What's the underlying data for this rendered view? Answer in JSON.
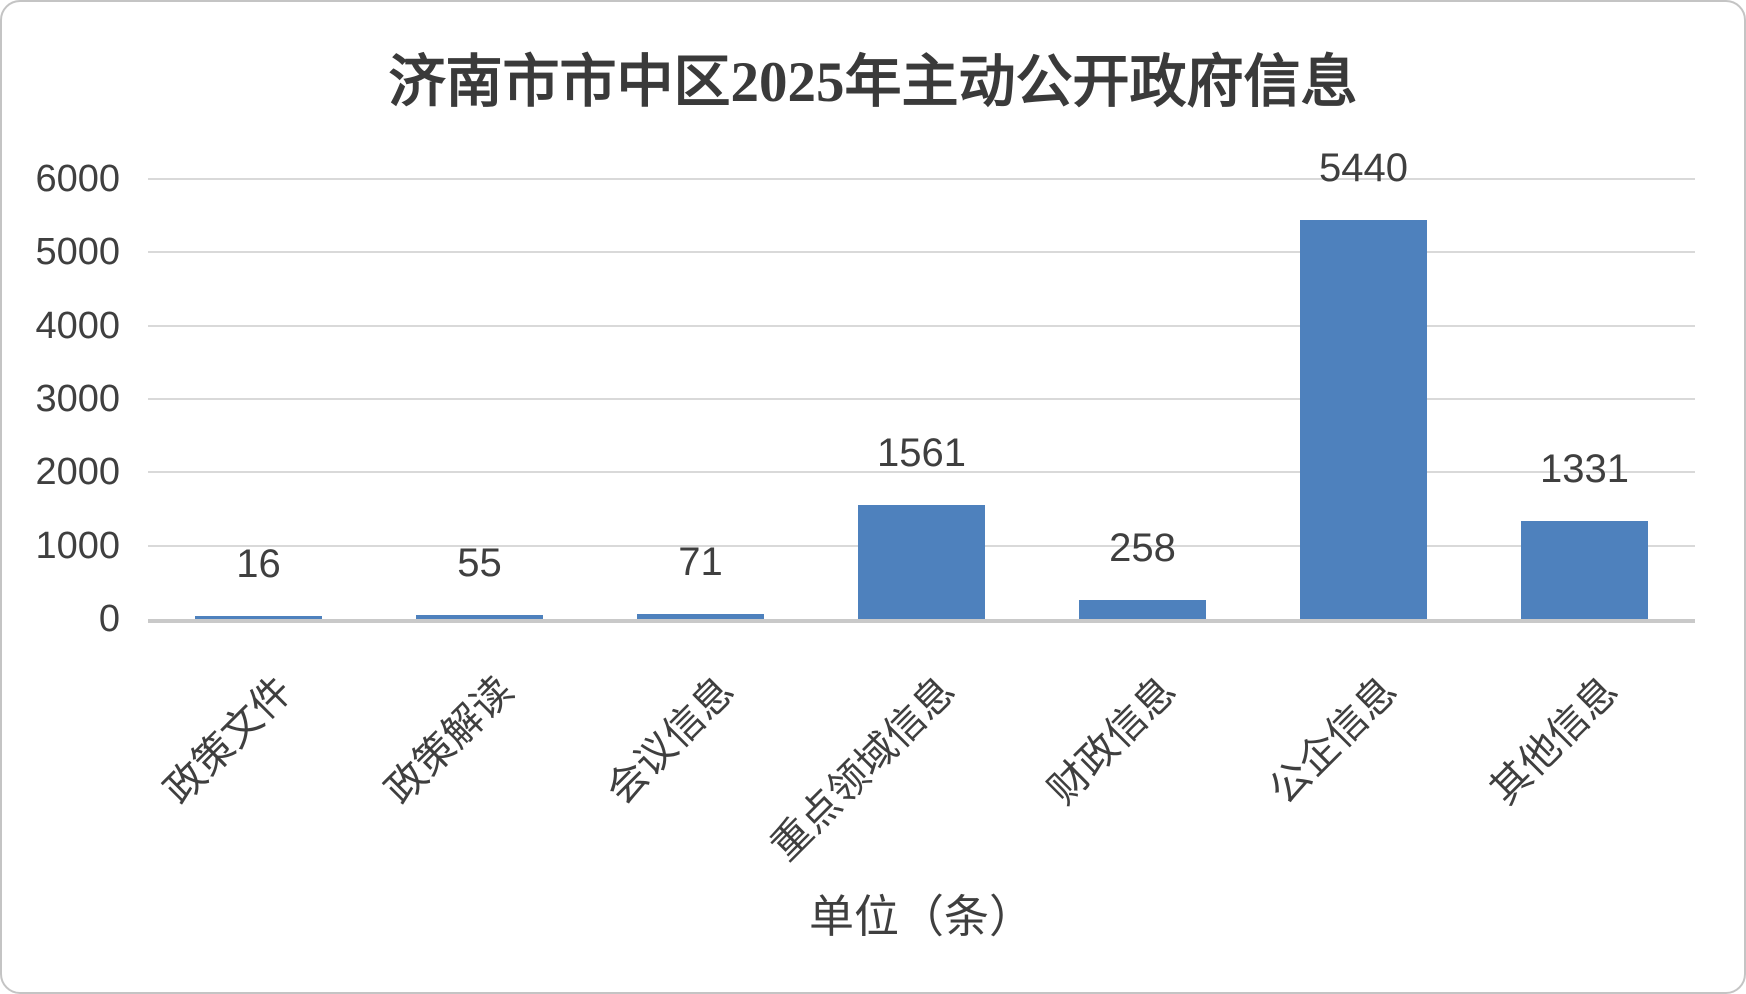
{
  "chart_data": {
    "type": "bar",
    "title": "济南市市中区2025年主动公开政府信息",
    "categories": [
      "政策文件",
      "政策解读",
      "会议信息",
      "重点领域信息",
      "财政信息",
      "公企信息",
      "其他信息"
    ],
    "values": [
      16,
      55,
      71,
      1561,
      258,
      5440,
      1331
    ],
    "data_labels": [
      "16",
      "55",
      "71",
      "1561",
      "258",
      "5440",
      "1331"
    ],
    "xlabel": "单位（条）",
    "ylabel": "",
    "ylim": [
      0,
      6000
    ],
    "yticks": [
      0,
      1000,
      2000,
      3000,
      4000,
      5000,
      6000
    ],
    "grid": true,
    "legend_position": "none",
    "bar_color": "#4E81BD"
  },
  "colors": {
    "bar": "#4E81BD",
    "gridline": "#D9D9D9",
    "axis_line": "#C9C9C9",
    "text": "#3F3F3F",
    "title_text": "#3A3A3A"
  }
}
